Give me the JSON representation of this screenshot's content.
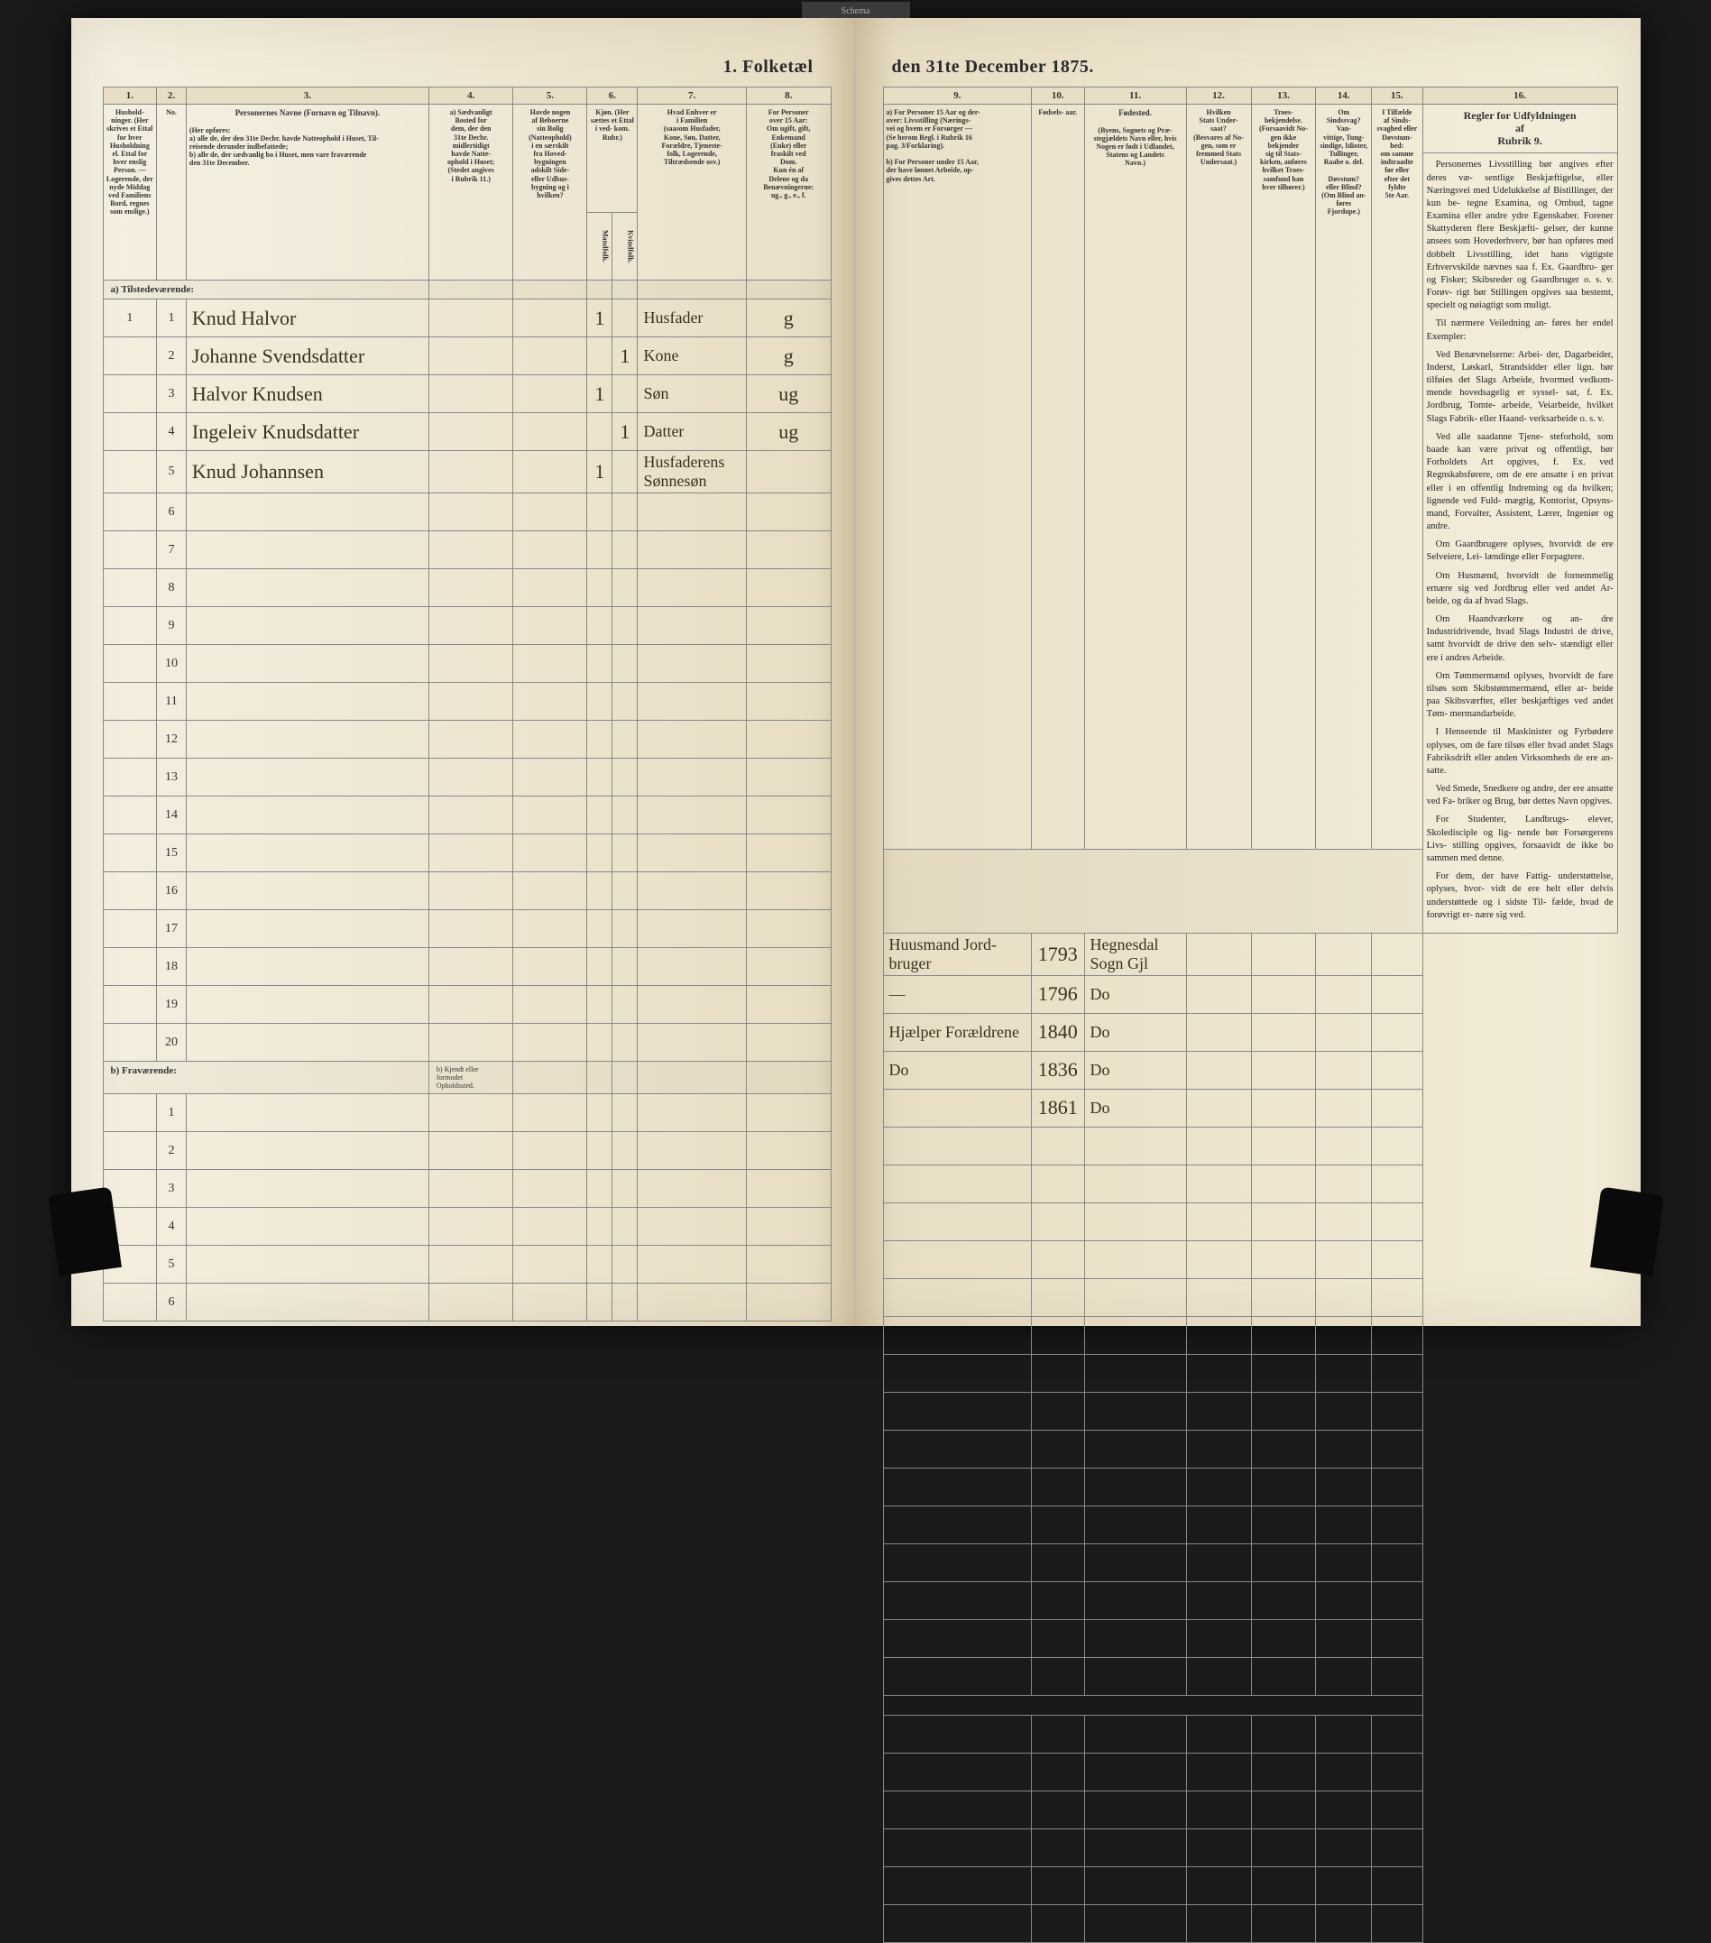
{
  "tab": "Schema",
  "title_left": "1. Folketæl",
  "title_right": "den 31te December 1875.",
  "columns_left": [
    "1.",
    "2.",
    "3.",
    "4.",
    "5.",
    "6.",
    "7.",
    "8."
  ],
  "columns_right": [
    "9.",
    "10.",
    "11.",
    "12.",
    "13.",
    "14.",
    "15.",
    "16."
  ],
  "headers_left": {
    "c1": "Hushold-\nninger.\n(Her skrives et\nEttal for hver\nHusholdning\nel. Ettal for\nhver enslig\nPerson.\n— Logerende,\nder nyde Middag\nved Familiens\nBord, regnes\nsom enslige.)",
    "c3_title": "Personernes Navne (Fornavn og Tilnavn).",
    "c3_body": "(Her opføres:\na) alle de, der den 31te Decbr. havde Natteophold i Huset, Til-\nreisende derunder indbefattede;\nb) alle de, der sædvanlig bo i Huset, men vare fraværende\nden 31te December.",
    "c4": "a) Sædvanligt\nBosted for\ndem, der den\n31te Decbr.\nmidlertidigt\nhavde Natte-\nophold i Huset;\n(Stedet angives\ni Rubrik 11.)",
    "c5": "Havde nogen\naf Beboerne\nsin Bolig\n(Natteophold)\ni en særskilt\nfra Hoved-\nbygningen\nadskilt Side-\neller Udbus-\nbygning og i\nhvilken?",
    "c6": "Kjøn.\n(Her sættes\net\nEttal i\nved-\nkom.\nRubr.)",
    "c6a": "Mandfolk.",
    "c6b": "Kvindfolk.",
    "c7": "Hvad Enhver er\ni Familien\n(saasom Husfader,\nKone, Søn, Datter,\nForældre, Tjeneste-\nfolk, Logerende,\nTiltrædsende osv.)",
    "c8": "For Personer\nover 15 Aar:\nOm ugift, gift,\nEnkemand\n(Enke) eller\nfraskilt ved\nDom.\nKun én af\nDelene og da\nBenævningerne:\nug., g., e., f."
  },
  "headers_right": {
    "c9": "a) For Personer 15 Aar og der-\nover: Livsstilling (Nærings-\nvei og hvem er Forsørger —\n(Se herom Regl. i Rubrik 16\npag. 3/Forklaring).\n\nb) For Personer under 15 Aar,\nder have lønnet Arbeide, op-\ngives dettes Art.",
    "c10": "Fødsels-\naar.",
    "c11_title": "Fødested.",
    "c11": "(Byens, Sognets og Præ-\nstegjældets Navn eller, hvis\nNogen er født i Udlandet,\nStatens og Landets\nNavn.)",
    "c12": "Hvilken\nStats Under-\nsaat?\n(Besvares af No-\ngen, som er\nfremmed Stats\nUndersaat.)",
    "c13": "Troes-\nbekjendelse.\n(Forsaavidt No-\ngen ikke bekjender\nsig til Stats-\nkirken, anføres\nhvilket Troes-\nsamfund han\nhver tilhører.)",
    "c14": "Om\nSindssvag?\nVan-\nvittige, Tung-\nsindige, Idioter,\nTullinger,\nRaabe o. del.\n\nDøvstum?\neller Blind?\n(Om Blind an-\nføres\nFjordope.)",
    "c15": "I Tilfælde\naf Sinds-\nsvaghed eller\nDøvstum-\nhed:\nom samme\nindtraadte\nfør eller\nefter det\nfyldte\n5te Aar.",
    "c16_title": "Regler for Udfyldningen\naf\nRubrik 9."
  },
  "section_a": "a) Tilstedeværende:",
  "section_b": "b) Fraværende:",
  "section_b_note": "b) Kjendt eller\nformodet\nOpholdssted.",
  "rows": [
    {
      "n": "1",
      "hh": "1",
      "name": "Knud Halvor",
      "c6a": "1",
      "c6b": "",
      "rel": "Husfader",
      "ms": "g",
      "occ": "Huusmand Jord-\nbruger",
      "year": "1793",
      "place": "Hegnesdal\nSogn Gjl"
    },
    {
      "n": "2",
      "hh": "",
      "name": "Johanne Svendsdatter",
      "c6a": "",
      "c6b": "1",
      "rel": "Kone",
      "ms": "g",
      "occ": "—",
      "year": "1796",
      "place": "Do"
    },
    {
      "n": "3",
      "hh": "",
      "name": "Halvor Knudsen",
      "c6a": "1",
      "c6b": "",
      "rel": "Søn",
      "ms": "ug",
      "occ": "Hjælper Forældrene",
      "year": "1840",
      "place": "Do"
    },
    {
      "n": "4",
      "hh": "",
      "name": "Ingeleiv Knudsdatter",
      "c6a": "",
      "c6b": "1",
      "rel": "Datter",
      "ms": "ug",
      "occ": "Do",
      "year": "1836",
      "place": "Do"
    },
    {
      "n": "5",
      "hh": "",
      "name": "Knud Johannsen",
      "c6a": "1",
      "c6b": "",
      "rel": "Husfaderens\nSønnesøn",
      "ms": "",
      "occ": "",
      "year": "1861",
      "place": "Do"
    }
  ],
  "empty_rows_a": [
    "6",
    "7",
    "8",
    "9",
    "10",
    "11",
    "12",
    "13",
    "14",
    "15",
    "16",
    "17",
    "18",
    "19",
    "20"
  ],
  "empty_rows_b": [
    "1",
    "2",
    "3",
    "4",
    "5",
    "6"
  ],
  "instructions": {
    "p1": "Personernes Livsstilling bør angives efter deres væ-\nsentlige Beskjæftigelse, eller\nNæringsvei med Udelukkelse\naf Bistillinger, der kun be-\ntegne Examina, og Ombud,\ntagne Examina eller andre\nydre Egenskaber. Forener\nSkattyderen flere Beskjæfti-\ngelser, der kunne ansees som\nHovederhverv, bør han opføres\nmed dobbelt Livsstilling, idet\nhans vigtigste Erhvervskilde\nnævnes saa f. Ex. Gaardbru-\nger og Fisker; Skibsreder og\nGaardbruger o. s. v. Forøv-\nrigt bør Stillingen opgives saa\nbestemt, specielt og nøiagtigt\nsom muligt.",
    "p2": "Til nærmere Veiledning an-\nføres her endel Exempler:",
    "p3": "Ved Benævnelserne: Arbei-\nder, Dagarbeider, Inderst,\nLøskarl, Strandsidder eller\nlign. bør tilføies det Slags\nArbeide, hvormed vedkom-\nmende hovedsagelig er syssel-\nsat, f. Ex. Jordbrug, Tomte-\narbeide, Veiarbeide, hvilket\nSlags Fabrik- eller Haand-\nverksarbeide o. s. v.",
    "p4": "Ved alle saadanne Tjene-\nsteforhold, som baade kan\nvære privat og offentligt, bør\nForholdets Art opgives, f. Ex.\nved Regnskabsførere, om de\nere ansatte i en privat eller\ni en offentlig Indretning og\nda hvilken; lignende ved Fuld-\nmægtig, Kontorist, Opsyns-\nmand, Forvalter, Assistent,\nLærer, Ingeniør og andre.",
    "p5": "Om Gaardbrugere oplyses,\nhvorvidt de ere Selveiere, Lei-\nlændinge eller Forpagtere.",
    "p6": "Om Husmænd, hvorvidt de\nfornemmelig ernære sig ved\nJordbrug eller ved andet Ar-\nbeide, og da af hvad Slags.",
    "p7": "Om Haandværkere og an-\ndre Industridrivende, hvad\nSlags Industri de drive, samt\nhvorvidt de drive den selv-\nstændigt eller ere i andres\nArbeide.",
    "p8": "Om Tømmermænd oplyses,\nhvorvidt de fare tilsøs som\nSkibstømmermænd, eller ar-\nbeide paa Skibsværfter, eller\nbeskjæftiges ved andet Tøm-\nmermandarbeide.",
    "p9": "I Henseende til Maskinister\nog Fyrbødere oplyses, om de\nfare tilsøs eller hvad andet\nSlags Fabriksdrift eller anden\nVirksomheds de ere an-\nsatte.",
    "p10": "Ved Smede, Snedkere og\nandre, der ere ansatte ved Fa-\nbriker og Brug, bør dettes\nNavn opgives.",
    "p11": "For Studenter, Landbrugs-\nelever, Skoledisciple og lig-\nnende bør Forsørgerens Livs-\nstilling opgives, forsaavidt de\nikke bo sammen med denne.",
    "p12": "For dem, der have Fattig-\nunderstøttelse, oplyses, hvor-\nvidt de ere helt eller delvis\nunderstøttede og i sidste Til-\nfælde, hvad de forøvrigt er-\nnære sig ved."
  }
}
